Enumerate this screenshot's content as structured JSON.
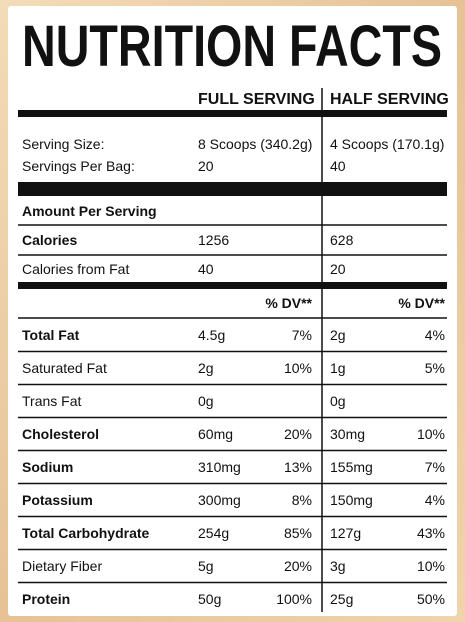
{
  "title": "NUTRITION FACTS",
  "columns": [
    "FULL SERVING",
    "HALF SERVING"
  ],
  "serving": [
    {
      "label": "Serving Size:",
      "full": "8 Scoops (340.2g)",
      "half": "4 Scoops (170.1g)"
    },
    {
      "label": "Servings Per Bag:",
      "full": "20",
      "half": "40"
    }
  ],
  "amount_header": "Amount Per Serving",
  "calories": [
    {
      "label": "Calories",
      "bold": true,
      "full": "1256",
      "half": "628"
    },
    {
      "label": "Calories from Fat",
      "bold": false,
      "full": "40",
      "half": "20"
    }
  ],
  "dv_header": "% DV**",
  "nutrients": [
    {
      "label": "Total Fat",
      "bold": true,
      "full": "4.5g",
      "full_dv": "7%",
      "half": "2g",
      "half_dv": "4%"
    },
    {
      "label": "Saturated Fat",
      "bold": false,
      "full": "2g",
      "full_dv": "10%",
      "half": "1g",
      "half_dv": "5%"
    },
    {
      "label": "Trans Fat",
      "bold": false,
      "full": "0g",
      "full_dv": null,
      "half": "0g",
      "half_dv": null
    },
    {
      "label": "Cholesterol",
      "bold": true,
      "full": "60mg",
      "full_dv": "20%",
      "half": "30mg",
      "half_dv": "10%"
    },
    {
      "label": "Sodium",
      "bold": true,
      "full": "310mg",
      "full_dv": "13%",
      "half": "155mg",
      "half_dv": "7%"
    },
    {
      "label": "Potassium",
      "bold": true,
      "full": "300mg",
      "full_dv": "8%",
      "half": "150mg",
      "half_dv": "4%"
    },
    {
      "label": "Total Carbohydrate",
      "bold": true,
      "full": "254g",
      "full_dv": "85%",
      "half": "127g",
      "half_dv": "43%"
    },
    {
      "label": "Dietary Fiber",
      "bold": false,
      "full": "5g",
      "full_dv": "20%",
      "half": "3g",
      "half_dv": "10%"
    },
    {
      "label": "Protein",
      "bold": true,
      "full": "50g",
      "full_dv": "100%",
      "half": "25g",
      "half_dv": "50%"
    }
  ]
}
